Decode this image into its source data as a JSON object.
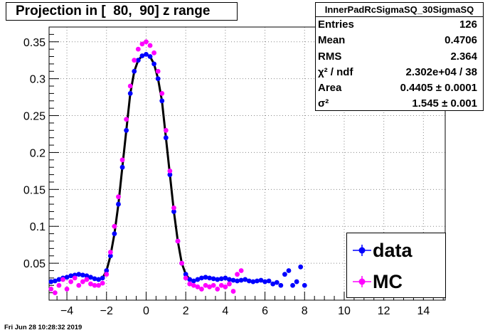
{
  "title": "Projection in [  80,  90] z range",
  "stats": {
    "name": "InnerPadRcSigmaSQ_30SigmaSQ",
    "rows": [
      {
        "label": "Entries",
        "value": "126"
      },
      {
        "label": "Mean",
        "value": "0.4706"
      },
      {
        "label": "RMS",
        "value": "2.364"
      },
      {
        "label": "χ² / ndf",
        "value": "2.302e+04 / 38"
      },
      {
        "label": "Area",
        "value": "0.4405 ± 0.0001"
      },
      {
        "label": "σ²",
        "value": "1.545 ± 0.001"
      }
    ]
  },
  "legend": [
    {
      "label": "data",
      "color": "#0000ff"
    },
    {
      "label": "MC",
      "color": "#ff00ff"
    }
  ],
  "footer": "Fri Jun 28 10:28:32 2019",
  "chart_data": {
    "type": "scatter",
    "xlim": [
      -4.9,
      15.1
    ],
    "ylim": [
      0,
      0.37
    ],
    "grid": true,
    "legend_position": "bottom-right",
    "xticks": [
      "−4",
      "−2",
      "0",
      "2",
      "4",
      "6",
      "8",
      "10",
      "12",
      "14"
    ],
    "xtick_values": [
      -4,
      -2,
      0,
      2,
      4,
      6,
      8,
      10,
      12,
      14
    ],
    "yticks": [
      "0.05",
      "0.1",
      "0.15",
      "0.2",
      "0.25",
      "0.3",
      "0.35"
    ],
    "ytick_values": [
      0.05,
      0.1,
      0.15,
      0.2,
      0.25,
      0.3,
      0.35
    ],
    "series": [
      {
        "name": "data",
        "color": "#0000ff",
        "x": [
          -4.8,
          -4.6,
          -4.4,
          -4.2,
          -4.0,
          -3.8,
          -3.6,
          -3.4,
          -3.2,
          -3.0,
          -2.8,
          -2.6,
          -2.4,
          -2.2,
          -2.0,
          -1.8,
          -1.6,
          -1.4,
          -1.2,
          -1.0,
          -0.8,
          -0.6,
          -0.4,
          -0.2,
          0.0,
          0.2,
          0.4,
          0.6,
          0.8,
          1.0,
          1.2,
          1.4,
          1.6,
          1.8,
          2.0,
          2.2,
          2.4,
          2.6,
          2.8,
          3.0,
          3.2,
          3.4,
          3.6,
          3.8,
          4.0,
          4.2,
          4.4,
          4.6,
          4.8,
          5.0,
          5.2,
          5.4,
          5.6,
          5.8,
          6.0,
          6.2,
          6.4,
          6.6,
          6.8,
          7.0,
          7.2,
          7.4,
          7.6,
          7.8,
          8.0
        ],
        "y": [
          0.025,
          0.026,
          0.028,
          0.03,
          0.031,
          0.033,
          0.034,
          0.035,
          0.034,
          0.033,
          0.031,
          0.029,
          0.028,
          0.03,
          0.04,
          0.06,
          0.09,
          0.13,
          0.18,
          0.23,
          0.28,
          0.31,
          0.325,
          0.331,
          0.333,
          0.33,
          0.32,
          0.3,
          0.27,
          0.22,
          0.17,
          0.12,
          0.08,
          0.05,
          0.035,
          0.028,
          0.026,
          0.028,
          0.03,
          0.031,
          0.03,
          0.029,
          0.028,
          0.029,
          0.03,
          0.028,
          0.027,
          0.026,
          0.027,
          0.028,
          0.026,
          0.025,
          0.026,
          0.027,
          0.025,
          0.026,
          0.022,
          0.024,
          0.02,
          0.035,
          0.04,
          0.02,
          0.025,
          0.045,
          0.02
        ]
      },
      {
        "name": "MC",
        "color": "#ff00ff",
        "x": [
          -4.8,
          -4.6,
          -4.4,
          -4.2,
          -4.0,
          -3.8,
          -3.6,
          -3.4,
          -3.2,
          -3.0,
          -2.8,
          -2.6,
          -2.4,
          -2.2,
          -2.0,
          -1.8,
          -1.6,
          -1.4,
          -1.2,
          -1.0,
          -0.8,
          -0.6,
          -0.4,
          -0.2,
          0.0,
          0.2,
          0.4,
          0.6,
          0.8,
          1.0,
          1.2,
          1.4,
          1.6,
          1.8,
          2.0,
          2.2,
          2.4,
          2.6,
          2.8,
          3.0,
          3.2,
          3.4,
          3.6,
          3.8,
          4.0,
          4.2,
          4.4,
          4.6,
          4.8
        ],
        "y": [
          0.015,
          0.01,
          0.02,
          0.028,
          0.015,
          0.025,
          0.03,
          0.02,
          0.025,
          0.028,
          0.022,
          0.02,
          0.02,
          0.023,
          0.035,
          0.065,
          0.1,
          0.14,
          0.19,
          0.245,
          0.29,
          0.325,
          0.34,
          0.347,
          0.35,
          0.345,
          0.335,
          0.31,
          0.28,
          0.23,
          0.175,
          0.125,
          0.08,
          0.05,
          0.03,
          0.022,
          0.02,
          0.018,
          0.015,
          0.02,
          0.018,
          0.02,
          0.015,
          0.02,
          0.018,
          0.022,
          0.012,
          0.035,
          0.04
        ]
      }
    ]
  }
}
